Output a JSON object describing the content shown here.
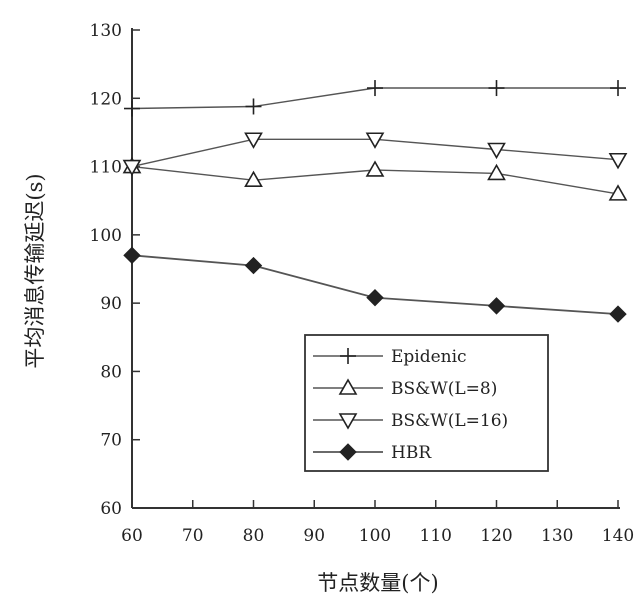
{
  "chart_data": {
    "type": "line",
    "xlabel": "节点数量(个)",
    "ylabel": "平均消息传输延迟(s)",
    "x": [
      60,
      80,
      100,
      120,
      140
    ],
    "xlim": [
      60,
      140
    ],
    "ylim": [
      60,
      130
    ],
    "xticks": [
      60,
      70,
      80,
      90,
      100,
      110,
      120,
      130,
      140
    ],
    "yticks": [
      60,
      70,
      80,
      90,
      100,
      110,
      120,
      130
    ],
    "grid": false,
    "legend_position": "bottom-right",
    "series": [
      {
        "name": "Epidenic",
        "marker": "plus",
        "values": [
          118.5,
          118.8,
          121.5,
          121.5,
          121.5
        ]
      },
      {
        "name": "BS&W(L=8)",
        "marker": "triangle-up",
        "values": [
          110,
          108,
          109.5,
          109,
          106
        ]
      },
      {
        "name": "BS&W(L=16)",
        "marker": "triangle-down",
        "values": [
          110,
          114,
          114,
          112.5,
          111
        ]
      },
      {
        "name": "HBR",
        "marker": "diamond-filled",
        "values": [
          97,
          95.5,
          90.8,
          89.6,
          88.4
        ]
      }
    ],
    "colors": {
      "line": "#555555",
      "marker": "#222222",
      "axis": "#333333"
    }
  }
}
